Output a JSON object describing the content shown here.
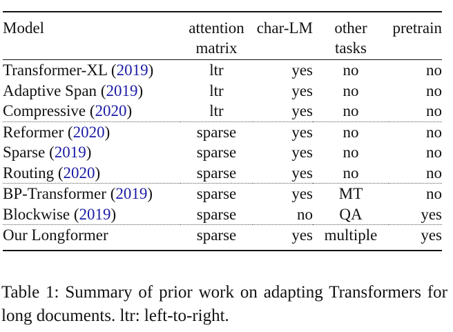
{
  "table": {
    "headers": [
      {
        "line1": "Model",
        "line2": ""
      },
      {
        "line1": "attention",
        "line2": "matrix"
      },
      {
        "line1": "char-LM",
        "line2": ""
      },
      {
        "line1": "other",
        "line2": "tasks"
      },
      {
        "line1": "pretrain",
        "line2": ""
      }
    ],
    "rows": [
      {
        "model": "Transformer-XL",
        "open": " (",
        "year": "2019",
        "close": ")",
        "attention": "ltr",
        "charlm": "yes",
        "other": "no",
        "pretrain": "no"
      },
      {
        "model": "Adaptive Span",
        "open": " (",
        "year": "2019",
        "close": ")",
        "attention": "ltr",
        "charlm": "yes",
        "other": "no",
        "pretrain": "no"
      },
      {
        "model": "Compressive",
        "open": " (",
        "year": "2020",
        "close": ")",
        "attention": "ltr",
        "charlm": "yes",
        "other": "no",
        "pretrain": "no"
      },
      {
        "model": "Reformer",
        "open": " (",
        "year": "2020",
        "close": ")",
        "attention": "sparse",
        "charlm": "yes",
        "other": "no",
        "pretrain": "no"
      },
      {
        "model": "Sparse",
        "open": " (",
        "year": "2019",
        "close": ")",
        "attention": "sparse",
        "charlm": "yes",
        "other": "no",
        "pretrain": "no"
      },
      {
        "model": "Routing",
        "open": " (",
        "year": "2020",
        "close": ")",
        "attention": "sparse",
        "charlm": "yes",
        "other": "no",
        "pretrain": "no"
      },
      {
        "model": "BP-Transformer",
        "open": " (",
        "year": "2019",
        "close": ")",
        "attention": "sparse",
        "charlm": "yes",
        "other": "MT",
        "pretrain": "no"
      },
      {
        "model": "Blockwise",
        "open": " (",
        "year": "2019",
        "close": ")",
        "attention": "sparse",
        "charlm": "no",
        "other": "QA",
        "pretrain": "yes"
      },
      {
        "model": "Our Longformer",
        "open": "",
        "year": "",
        "close": "",
        "attention": "sparse",
        "charlm": "yes",
        "other": "multiple",
        "pretrain": "yes"
      }
    ]
  },
  "caption": "Table 1:  Summary of prior work on adapting Transformers for long documents. ltr: left-to-right.",
  "colors": {
    "citation": "#1a1aa6",
    "text": "#111111"
  }
}
